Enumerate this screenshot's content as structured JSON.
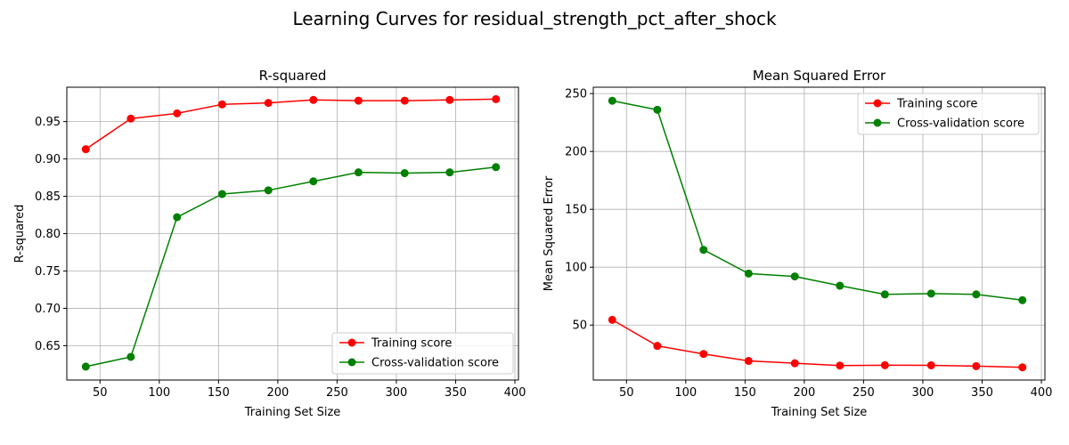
{
  "figure": {
    "title": "Learning Curves for residual_strength_pct_after_shock"
  },
  "chart_data": [
    {
      "type": "line",
      "title": "R-squared",
      "xlabel": "Training Set Size",
      "ylabel": "R-squared",
      "xlim": [
        22,
        403
      ],
      "ylim": [
        0.604,
        0.996
      ],
      "x_ticks": [
        50,
        100,
        150,
        200,
        250,
        300,
        350,
        400
      ],
      "y_ticks": [
        0.65,
        0.7,
        0.75,
        0.8,
        0.85,
        0.9,
        0.95
      ],
      "y_tick_decimals": 2,
      "grid": true,
      "legend_position": "lower right",
      "x": [
        38,
        76,
        115,
        153,
        192,
        230,
        268,
        307,
        345,
        384
      ],
      "series": [
        {
          "name": "Training score",
          "color": "#ff0000",
          "values": [
            0.913,
            0.954,
            0.961,
            0.973,
            0.975,
            0.979,
            0.978,
            0.978,
            0.979,
            0.98
          ]
        },
        {
          "name": "Cross-validation score",
          "color": "#008000",
          "values": [
            0.622,
            0.635,
            0.822,
            0.853,
            0.858,
            0.87,
            0.882,
            0.881,
            0.882,
            0.889
          ]
        }
      ]
    },
    {
      "type": "line",
      "title": "Mean Squared Error",
      "xlabel": "Training Set Size",
      "ylabel": "Mean Squared Error",
      "xlim": [
        22,
        403
      ],
      "ylim": [
        2.5,
        255.5
      ],
      "x_ticks": [
        50,
        100,
        150,
        200,
        250,
        300,
        350,
        400
      ],
      "y_ticks": [
        50,
        100,
        150,
        200,
        250
      ],
      "y_tick_decimals": 0,
      "grid": true,
      "legend_position": "upper right",
      "x": [
        38,
        76,
        115,
        153,
        192,
        230,
        268,
        307,
        345,
        384
      ],
      "series": [
        {
          "name": "Training score",
          "color": "#ff0000",
          "values": [
            54.5,
            32.0,
            25.0,
            19.0,
            17.0,
            15.0,
            15.3,
            15.2,
            14.5,
            13.5
          ]
        },
        {
          "name": "Cross-validation score",
          "color": "#008000",
          "values": [
            243.8,
            236.0,
            115.0,
            94.5,
            92.0,
            84.0,
            76.5,
            77.2,
            76.5,
            71.5
          ]
        }
      ]
    }
  ]
}
